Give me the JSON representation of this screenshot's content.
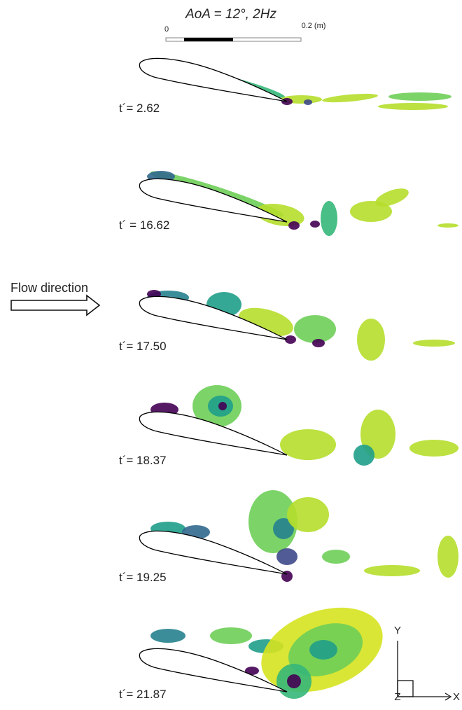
{
  "title": "AoA = 12°, 2Hz",
  "scale_bar": {
    "start": "0",
    "end": "0.2 (m)"
  },
  "flow_label": "Flow direction",
  "panels": [
    {
      "label": "t´= 2.62"
    },
    {
      "label": "t´ = 16.62"
    },
    {
      "label": "t´= 17.50"
    },
    {
      "label": "t´= 18.37"
    },
    {
      "label": "t´= 19.25"
    },
    {
      "label": "t´= 21.87"
    }
  ],
  "axes": {
    "y": "Y",
    "z": "Z",
    "x": "X"
  }
}
